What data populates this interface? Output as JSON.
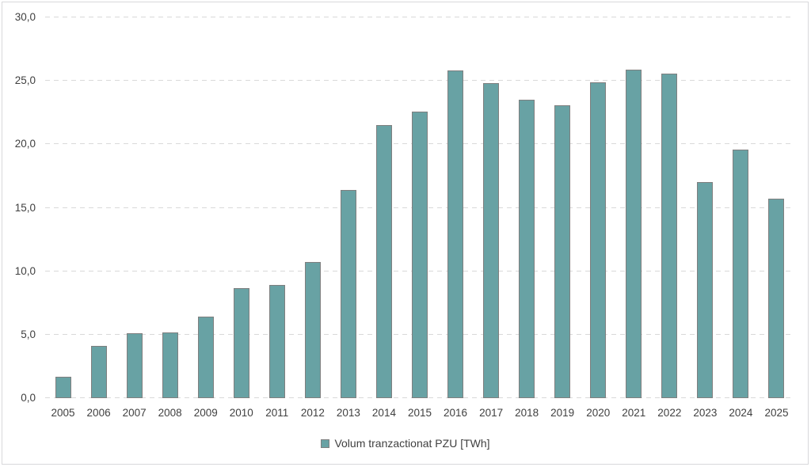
{
  "chart_data": {
    "type": "bar",
    "title": "",
    "categories": [
      "2005",
      "2006",
      "2007",
      "2008",
      "2009",
      "2010",
      "2011",
      "2012",
      "2013",
      "2014",
      "2015",
      "2016",
      "2017",
      "2018",
      "2019",
      "2020",
      "2021",
      "2022",
      "2023",
      "2024",
      "2025"
    ],
    "series": [
      {
        "name": "Volum tranzactionat PZU [TWh]",
        "values": [
          1.7,
          4.1,
          5.1,
          5.2,
          6.4,
          8.7,
          8.9,
          10.7,
          16.4,
          21.5,
          22.6,
          25.8,
          24.8,
          23.5,
          23.1,
          24.9,
          25.9,
          25.6,
          17.0,
          19.6,
          15.7
        ]
      }
    ],
    "xlabel": "",
    "ylabel": "",
    "ylim": [
      0,
      30
    ],
    "ytick_step": 5,
    "ytick_labels": [
      "0,0",
      "5,0",
      "10,0",
      "15,0",
      "20,0",
      "25,0",
      "30,0"
    ],
    "decimal_separator": ",",
    "grid": "horizontal-dashed",
    "legend_position": "bottom-center"
  },
  "legend": {
    "swatch_icon": "legend-swatch",
    "label": "Volum tranzactionat PZU [TWh]"
  },
  "colors": {
    "bar_fill": "#68a2a4",
    "bar_border": "#7f7f7f",
    "gridline": "#d9d9d9",
    "axis_text": "#404040",
    "frame_border": "#d8d8db",
    "background": "#ffffff"
  }
}
